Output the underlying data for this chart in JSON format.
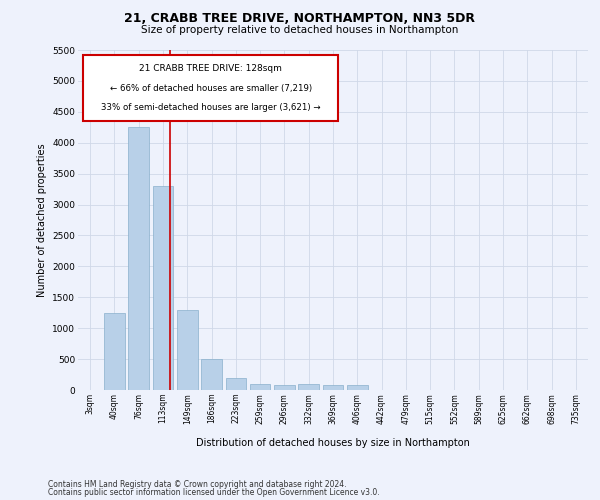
{
  "title1": "21, CRABB TREE DRIVE, NORTHAMPTON, NN3 5DR",
  "title2": "Size of property relative to detached houses in Northampton",
  "xlabel": "Distribution of detached houses by size in Northampton",
  "ylabel": "Number of detached properties",
  "footer1": "Contains HM Land Registry data © Crown copyright and database right 2024.",
  "footer2": "Contains public sector information licensed under the Open Government Licence v3.0.",
  "annotation_title": "21 CRABB TREE DRIVE: 128sqm",
  "annotation_line1": "← 66% of detached houses are smaller (7,219)",
  "annotation_line2": "33% of semi-detached houses are larger (3,621) →",
  "bar_color": "#b8d0e8",
  "bar_edge_color": "#8ab0cc",
  "grid_color": "#d0d8e8",
  "annotation_box_color": "#cc0000",
  "vline_color": "#cc0000",
  "categories": [
    "3sqm",
    "40sqm",
    "76sqm",
    "113sqm",
    "149sqm",
    "186sqm",
    "223sqm",
    "259sqm",
    "296sqm",
    "332sqm",
    "369sqm",
    "406sqm",
    "442sqm",
    "479sqm",
    "515sqm",
    "552sqm",
    "589sqm",
    "625sqm",
    "662sqm",
    "698sqm",
    "735sqm"
  ],
  "values": [
    0,
    1250,
    4250,
    3300,
    1300,
    500,
    200,
    100,
    75,
    100,
    75,
    75,
    0,
    0,
    0,
    0,
    0,
    0,
    0,
    0,
    0
  ],
  "ylim": [
    0,
    5500
  ],
  "yticks": [
    0,
    500,
    1000,
    1500,
    2000,
    2500,
    3000,
    3500,
    4000,
    4500,
    5000,
    5500
  ],
  "vline_x": 3.27,
  "bg_color": "#eef2fc"
}
